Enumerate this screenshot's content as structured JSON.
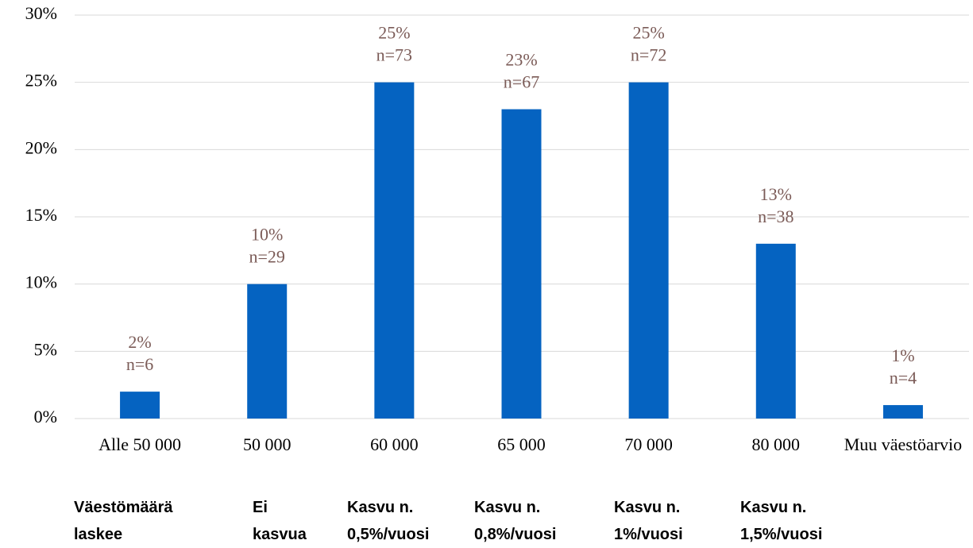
{
  "chart_data": {
    "type": "bar",
    "categories": [
      "Alle 50 000",
      "50 000",
      "60 000",
      "65 000",
      "70 000",
      "80 000",
      "Muu väestöarvio"
    ],
    "subcategories": [
      "Väestömäärä laskee",
      "Ei kasvua",
      "Kasvu n. 0,5%/vuosi",
      "Kasvu n. 0,8%/vuosi",
      "Kasvu n. 1%/vuosi",
      "Kasvu n. 1,5%/vuosi",
      null
    ],
    "values": [
      2,
      10,
      25,
      23,
      25,
      13,
      1
    ],
    "value_labels": [
      "2%",
      "10%",
      "25%",
      "23%",
      "25%",
      "13%",
      "1%"
    ],
    "n_labels": [
      "n=6",
      "n=29",
      "n=73",
      "n=67",
      "n=72",
      "n=38",
      "n=4"
    ],
    "color": "#0563c1",
    "ylim": [
      0,
      30
    ],
    "yticks": [
      {
        "value": 0,
        "label": "0%"
      },
      {
        "value": 5,
        "label": "5%"
      },
      {
        "value": 10,
        "label": "10%"
      },
      {
        "value": 15,
        "label": "15%"
      },
      {
        "value": 20,
        "label": "20%"
      },
      {
        "value": 25,
        "label": "25%"
      },
      {
        "value": 30,
        "label": "30%"
      }
    ],
    "grid": true
  }
}
